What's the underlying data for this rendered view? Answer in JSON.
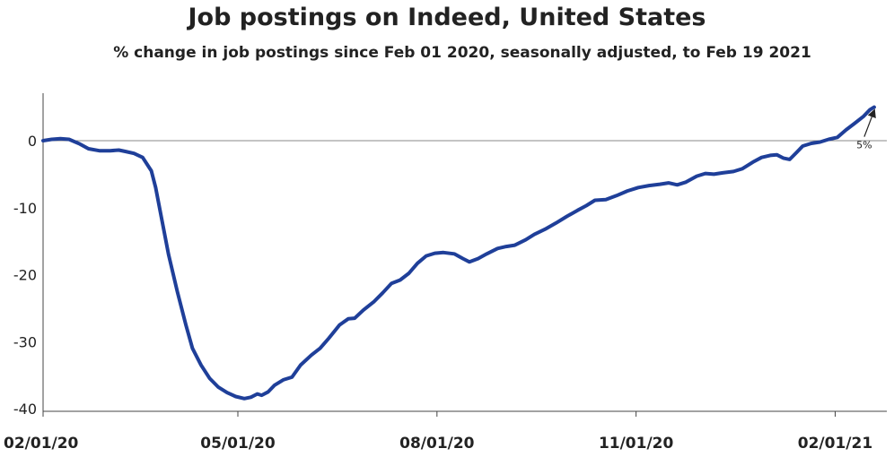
{
  "chart_data": {
    "type": "line",
    "title": "Job postings on Indeed, United States",
    "subtitle": "% change in job postings since Feb 01 2020, seasonally adjusted, to Feb 19 2021",
    "xlabel": "",
    "ylabel": "",
    "ylim": [
      -40,
      7
    ],
    "xlim": [
      "2020-02-01",
      "2021-02-25"
    ],
    "y_ticks": [
      0,
      -10,
      -20,
      -30,
      -40
    ],
    "x_ticks": [
      {
        "date": "2020-02-01",
        "label": "02/01/20"
      },
      {
        "date": "2020-05-01",
        "label": "05/01/20"
      },
      {
        "date": "2020-08-01",
        "label": "08/01/20"
      },
      {
        "date": "2020-11-01",
        "label": "11/01/20"
      },
      {
        "date": "2021-02-01",
        "label": "02/01/21"
      }
    ],
    "zero_line": true,
    "grid": false,
    "line_color": "#1f3f99",
    "annotation": {
      "text": "5%",
      "date": "2021-02-19",
      "value": 5
    },
    "series": [
      {
        "points": [
          [
            "2020-02-01",
            0.0
          ],
          [
            "2020-02-05",
            0.2
          ],
          [
            "2020-02-09",
            0.3
          ],
          [
            "2020-02-13",
            0.2
          ],
          [
            "2020-02-18",
            -0.5
          ],
          [
            "2020-02-22",
            -1.2
          ],
          [
            "2020-02-27",
            -1.5
          ],
          [
            "2020-03-03",
            -1.5
          ],
          [
            "2020-03-07",
            -1.4
          ],
          [
            "2020-03-10",
            -1.6
          ],
          [
            "2020-03-14",
            -1.9
          ],
          [
            "2020-03-18",
            -2.5
          ],
          [
            "2020-03-22",
            -4.5
          ],
          [
            "2020-03-24",
            -7.0
          ],
          [
            "2020-03-27",
            -12.0
          ],
          [
            "2020-03-30",
            -17.0
          ],
          [
            "2020-04-03",
            -22.5
          ],
          [
            "2020-04-07",
            -27.5
          ],
          [
            "2020-04-10",
            -31.0
          ],
          [
            "2020-04-14",
            -33.5
          ],
          [
            "2020-04-18",
            -35.5
          ],
          [
            "2020-04-22",
            -36.8
          ],
          [
            "2020-04-26",
            -37.6
          ],
          [
            "2020-04-30",
            -38.2
          ],
          [
            "2020-05-04",
            -38.5
          ],
          [
            "2020-05-07",
            -38.3
          ],
          [
            "2020-05-10",
            -37.8
          ],
          [
            "2020-05-12",
            -38.0
          ],
          [
            "2020-05-15",
            -37.5
          ],
          [
            "2020-05-18",
            -36.5
          ],
          [
            "2020-05-22",
            -35.7
          ],
          [
            "2020-05-26",
            -35.3
          ],
          [
            "2020-05-30",
            -33.5
          ],
          [
            "2020-06-04",
            -32.0
          ],
          [
            "2020-06-08",
            -31.0
          ],
          [
            "2020-06-12",
            -29.5
          ],
          [
            "2020-06-17",
            -27.5
          ],
          [
            "2020-06-21",
            -26.6
          ],
          [
            "2020-06-24",
            -26.5
          ],
          [
            "2020-06-28",
            -25.3
          ],
          [
            "2020-07-03",
            -24.0
          ],
          [
            "2020-07-07",
            -22.7
          ],
          [
            "2020-07-11",
            -21.3
          ],
          [
            "2020-07-15",
            -20.8
          ],
          [
            "2020-07-19",
            -19.8
          ],
          [
            "2020-07-23",
            -18.3
          ],
          [
            "2020-07-27",
            -17.2
          ],
          [
            "2020-07-31",
            -16.8
          ],
          [
            "2020-08-04",
            -16.7
          ],
          [
            "2020-08-09",
            -16.9
          ],
          [
            "2020-08-13",
            -17.6
          ],
          [
            "2020-08-16",
            -18.1
          ],
          [
            "2020-08-20",
            -17.6
          ],
          [
            "2020-08-24",
            -16.9
          ],
          [
            "2020-08-29",
            -16.1
          ],
          [
            "2020-09-02",
            -15.8
          ],
          [
            "2020-09-06",
            -15.6
          ],
          [
            "2020-09-11",
            -14.8
          ],
          [
            "2020-09-15",
            -14.0
          ],
          [
            "2020-09-20",
            -13.2
          ],
          [
            "2020-09-25",
            -12.3
          ],
          [
            "2020-09-30",
            -11.3
          ],
          [
            "2020-10-05",
            -10.4
          ],
          [
            "2020-10-09",
            -9.7
          ],
          [
            "2020-10-13",
            -8.9
          ],
          [
            "2020-10-18",
            -8.8
          ],
          [
            "2020-10-23",
            -8.2
          ],
          [
            "2020-10-28",
            -7.5
          ],
          [
            "2020-11-02",
            -7.0
          ],
          [
            "2020-11-07",
            -6.7
          ],
          [
            "2020-11-12",
            -6.5
          ],
          [
            "2020-11-16",
            -6.3
          ],
          [
            "2020-11-20",
            -6.6
          ],
          [
            "2020-11-24",
            -6.2
          ],
          [
            "2020-11-29",
            -5.3
          ],
          [
            "2020-12-03",
            -4.9
          ],
          [
            "2020-12-07",
            -5.0
          ],
          [
            "2020-12-11",
            -4.8
          ],
          [
            "2020-12-16",
            -4.6
          ],
          [
            "2020-12-20",
            -4.2
          ],
          [
            "2020-12-25",
            -3.2
          ],
          [
            "2020-12-29",
            -2.5
          ],
          [
            "2021-01-02",
            -2.2
          ],
          [
            "2021-01-05",
            -2.1
          ],
          [
            "2021-01-08",
            -2.6
          ],
          [
            "2021-01-11",
            -2.8
          ],
          [
            "2021-01-14",
            -1.8
          ],
          [
            "2021-01-17",
            -0.8
          ],
          [
            "2021-01-21",
            -0.4
          ],
          [
            "2021-01-25",
            -0.2
          ],
          [
            "2021-01-29",
            0.2
          ],
          [
            "2021-02-02",
            0.5
          ],
          [
            "2021-02-06",
            1.6
          ],
          [
            "2021-02-10",
            2.6
          ],
          [
            "2021-02-14",
            3.6
          ],
          [
            "2021-02-17",
            4.6
          ],
          [
            "2021-02-19",
            5.0
          ]
        ]
      }
    ]
  }
}
